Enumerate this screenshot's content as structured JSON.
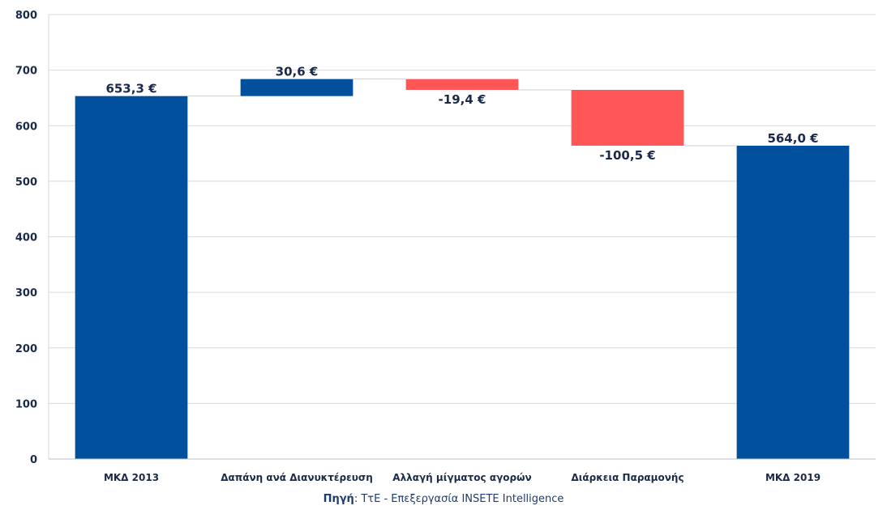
{
  "chart_data": {
    "type": "bar",
    "subtype": "waterfall",
    "categories": [
      "ΜΚΔ 2013",
      "Δαπάνη ανά Διανυκτέρευση",
      "Αλλαγή μίγματος αγορών",
      "Διάρκεια Παραμονής",
      "ΜΚΔ 2019"
    ],
    "values": [
      653.3,
      30.6,
      -19.4,
      -100.5,
      564.0
    ],
    "kinds": [
      "total",
      "delta",
      "delta",
      "delta",
      "total"
    ],
    "data_labels": [
      "653,3 €",
      "30,6 €",
      "-19,4 €",
      "-100,5 €",
      "564,0 €"
    ],
    "yticks": [
      "0",
      "100",
      "200",
      "300",
      "400",
      "500",
      "600",
      "700",
      "800"
    ],
    "ylim": [
      0,
      800
    ],
    "grid": true,
    "colors": {
      "total": "#00509e",
      "increase": "#00509e",
      "decrease": "#ff5757",
      "grid": "#d9d9d9",
      "text": "#1b2a4a"
    }
  },
  "footer": {
    "source_label": "Πηγή",
    "source_text": ": ΤτΕ - Επεξεργασία INSETE Intelligence"
  }
}
